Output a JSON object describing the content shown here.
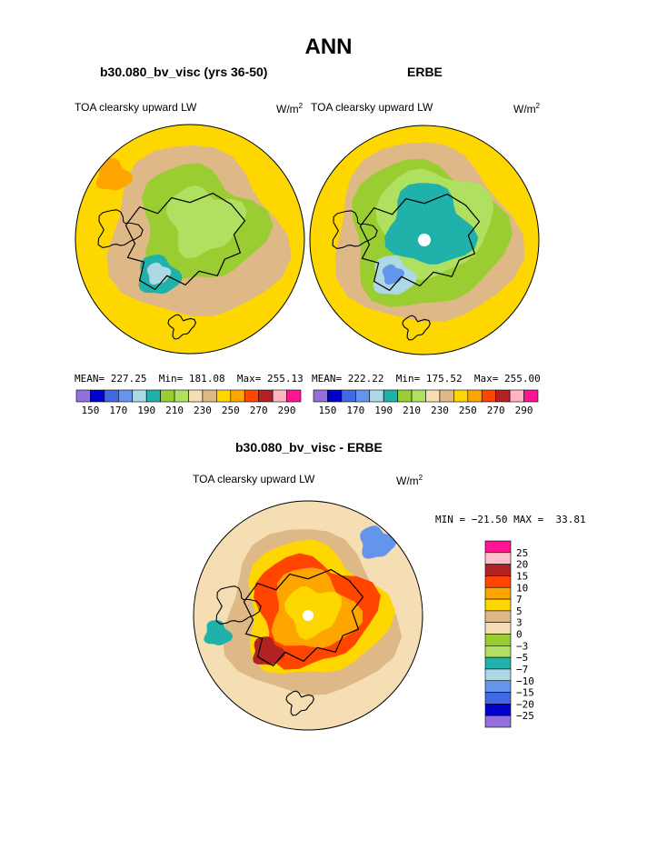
{
  "page": {
    "title": "ANN",
    "difference_title": "b30.080_bv_visc - ERBE"
  },
  "colors": {
    "abs_palette": [
      "#9370db",
      "#0000cd",
      "#4169e1",
      "#6495ed",
      "#add8e6",
      "#20b2aa",
      "#9acd32",
      "#b0e060",
      "#f5deb3",
      "#deb887",
      "#ffd700",
      "#ffa500",
      "#ff4500",
      "#b22222",
      "#ffb6c1",
      "#ff1493"
    ],
    "diff_palette": [
      "#9370db",
      "#0000cd",
      "#4169e1",
      "#6495ed",
      "#add8e6",
      "#20b2aa",
      "#b0e060",
      "#9acd32",
      "#f5deb3",
      "#deb887",
      "#ffd700",
      "#ffa500",
      "#ff4500",
      "#b22222",
      "#ffc0cb",
      "#ff1493"
    ]
  },
  "chart_data": [
    {
      "type": "heatmap",
      "projection": "north-polar-stereographic",
      "title": "b30.080_bv_visc (yrs 36-50)",
      "left_label": "TOA clearsky upward LW",
      "units_base": "W/m",
      "units_exp": "2",
      "stats": {
        "mean_label": "MEAN=",
        "mean": "227.25",
        "min_label": "Min=",
        "min": "181.08",
        "max_label": "Max=",
        "max": "255.13"
      },
      "contour_levels": [
        "150",
        "170",
        "190",
        "210",
        "230",
        "250",
        "270",
        "290"
      ]
    },
    {
      "type": "heatmap",
      "projection": "north-polar-stereographic",
      "title": "ERBE",
      "left_label": "TOA clearsky upward LW",
      "units_base": "W/m",
      "units_exp": "2",
      "stats": {
        "mean_label": "MEAN=",
        "mean": "222.22",
        "min_label": "Min=",
        "min": "175.52",
        "max_label": "Max=",
        "max": "255.00"
      },
      "contour_levels": [
        "150",
        "170",
        "190",
        "210",
        "230",
        "250",
        "270",
        "290"
      ]
    },
    {
      "type": "heatmap",
      "projection": "north-polar-stereographic",
      "title": "b30.080_bv_visc - ERBE",
      "left_label": "TOA clearsky upward LW",
      "units_base": "W/m",
      "units_exp": "2",
      "stats": {
        "min_label": "MIN =",
        "min": "−21.50",
        "max_label": "MAX =",
        "max": "33.81"
      },
      "contour_levels": [
        "25",
        "20",
        "15",
        "10",
        "7",
        "5",
        "3",
        "0",
        "−3",
        "−5",
        "−7",
        "−10",
        "−15",
        "−20",
        "−25"
      ]
    }
  ]
}
